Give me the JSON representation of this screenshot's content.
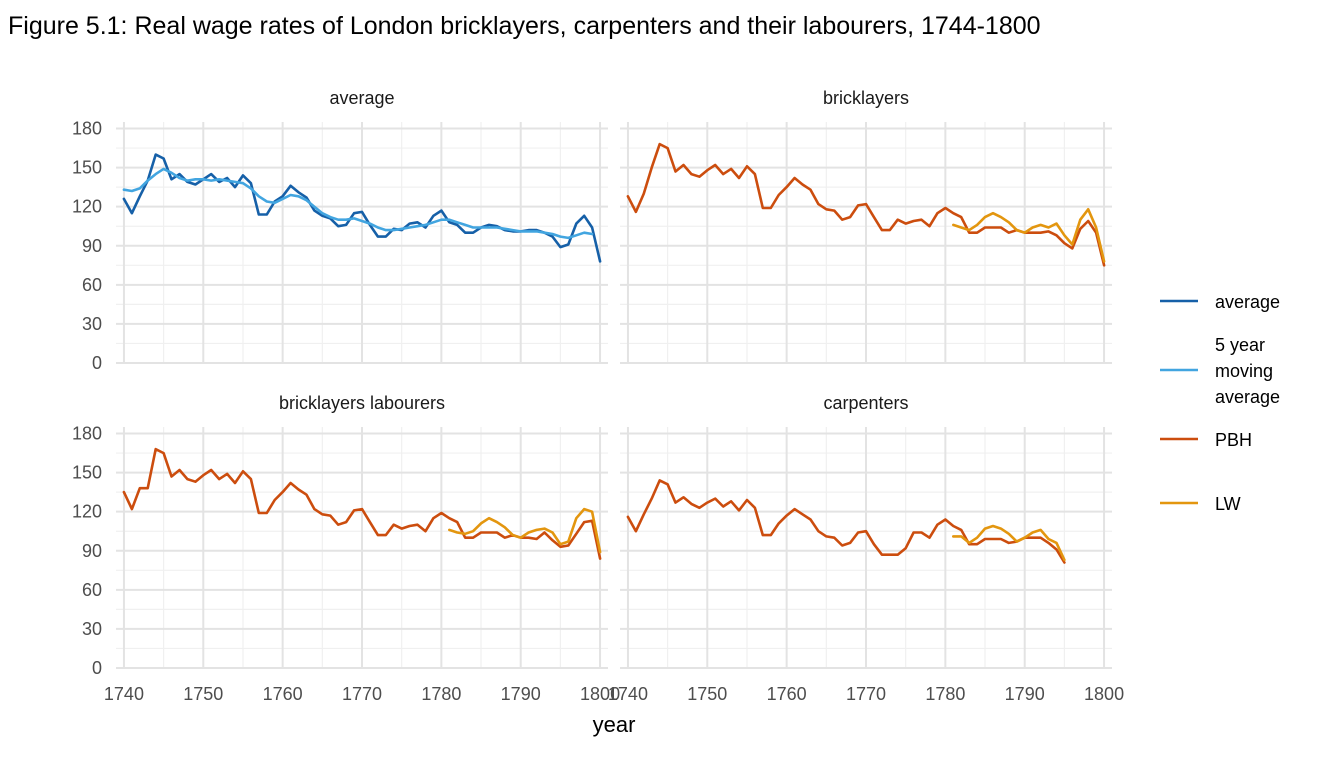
{
  "chart_title": "Figure 5.1: Real wage rates of London bricklayers, carpenters and their labourers, 1744-1800",
  "chart_data": {
    "type": "line",
    "title": "Figure 5.1: Real wage rates of London bricklayers, carpenters and their labourers, 1744-1800",
    "xlabel": "year",
    "ylabel": "",
    "xlim": [
      1739,
      1801
    ],
    "ylim": [
      0,
      185
    ],
    "x_ticks": [
      "1740",
      "1750",
      "1760",
      "1770",
      "1780",
      "1790",
      "1800"
    ],
    "y_ticks": [
      "0",
      "30",
      "60",
      "90",
      "120",
      "150",
      "180"
    ],
    "grid": true,
    "legend_position": "right",
    "legend": [
      {
        "label": "average",
        "color": "#1660a8"
      },
      {
        "label": "5 year moving average",
        "color": "#42a5e0"
      },
      {
        "label": "PBH",
        "color": "#cc4d0e"
      },
      {
        "label": "LW",
        "color": "#e3960f"
      }
    ],
    "panels": [
      {
        "name": "average",
        "series": [
          {
            "name": "average",
            "color": "#1660a8",
            "x_start": 1740,
            "values": [
              126,
              115,
              128,
              140,
              160,
              157,
              141,
              145,
              139,
              137,
              141,
              145,
              139,
              142,
              135,
              144,
              138,
              114,
              114,
              124,
              128,
              136,
              131,
              127,
              117,
              113,
              111,
              105,
              106,
              115,
              116,
              106,
              97,
              97,
              103,
              102,
              107,
              108,
              104,
              113,
              117,
              108,
              106,
              100,
              100,
              104,
              106,
              105,
              102,
              101,
              101,
              102,
              102,
              100,
              97,
              89,
              91,
              107,
              113,
              104,
              78
            ]
          },
          {
            "name": "5 year moving average",
            "color": "#42a5e0",
            "x_start": 1740,
            "values": [
              133,
              132,
              134,
              140,
              145,
              149,
              146,
              142,
              140,
              141,
              141,
              140,
              141,
              140,
              139,
              138,
              134,
              128,
              124,
              123,
              126,
              129,
              128,
              125,
              120,
              115,
              112,
              110,
              110,
              111,
              109,
              107,
              104,
              102,
              102,
              103,
              104,
              105,
              106,
              108,
              110,
              110,
              108,
              106,
              104,
              104,
              104,
              104,
              103,
              102,
              101,
              101,
              101,
              100,
              99,
              97,
              96,
              98,
              100,
              99
            ]
          }
        ]
      },
      {
        "name": "bricklayers",
        "series": [
          {
            "name": "PBH",
            "color": "#cc4d0e",
            "x_start": 1740,
            "values": [
              128,
              116,
              130,
              150,
              168,
              165,
              147,
              152,
              145,
              143,
              148,
              152,
              145,
              149,
              142,
              151,
              145,
              119,
              119,
              129,
              135,
              142,
              137,
              133,
              122,
              118,
              117,
              110,
              112,
              121,
              122,
              112,
              102,
              102,
              110,
              107,
              109,
              110,
              105,
              115,
              119,
              115,
              112,
              100,
              100,
              104,
              104,
              104,
              100,
              102,
              100,
              100,
              100,
              101,
              98,
              92,
              88,
              103,
              109,
              100,
              75
            ]
          },
          {
            "name": "LW",
            "color": "#e3960f",
            "x_start": 1781,
            "values": [
              106,
              104,
              102,
              106,
              112,
              115,
              112,
              108,
              102,
              100,
              104,
              106,
              104,
              107,
              98,
              91,
              110,
              118,
              104,
              78
            ]
          }
        ]
      },
      {
        "name": "bricklayers labourers",
        "series": [
          {
            "name": "PBH",
            "color": "#cc4d0e",
            "x_start": 1740,
            "values": [
              135,
              122,
              138,
              138,
              168,
              165,
              147,
              152,
              145,
              143,
              148,
              152,
              145,
              149,
              142,
              151,
              145,
              119,
              119,
              129,
              135,
              142,
              137,
              133,
              122,
              118,
              117,
              110,
              112,
              121,
              122,
              112,
              102,
              102,
              110,
              107,
              109,
              110,
              105,
              115,
              119,
              115,
              112,
              100,
              100,
              104,
              104,
              104,
              100,
              102,
              100,
              100,
              99,
              104,
              98,
              93,
              94,
              103,
              112,
              113,
              84
            ]
          },
          {
            "name": "LW",
            "color": "#e3960f",
            "x_start": 1781,
            "values": [
              106,
              104,
              103,
              105,
              111,
              115,
              112,
              108,
              102,
              100,
              104,
              106,
              107,
              104,
              95,
              97,
              115,
              122,
              120,
              89
            ]
          }
        ]
      },
      {
        "name": "carpenters",
        "series": [
          {
            "name": "PBH",
            "color": "#cc4d0e",
            "x_start": 1740,
            "values": [
              116,
              105,
              118,
              130,
              144,
              141,
              127,
              131,
              126,
              123,
              127,
              130,
              124,
              128,
              121,
              129,
              123,
              102,
              102,
              111,
              117,
              122,
              118,
              114,
              105,
              101,
              100,
              94,
              96,
              104,
              105,
              95,
              87,
              87,
              87,
              92,
              104,
              104,
              100,
              110,
              114,
              109,
              106,
              95,
              95,
              99,
              99,
              99,
              96,
              97,
              100,
              100,
              100,
              96,
              91,
              81
            ]
          },
          {
            "name": "LW",
            "color": "#e3960f",
            "x_start": 1781,
            "values": [
              101,
              101,
              96,
              100,
              107,
              109,
              107,
              103,
              97,
              100,
              104,
              106,
              99,
              96,
              83
            ]
          }
        ]
      }
    ]
  }
}
